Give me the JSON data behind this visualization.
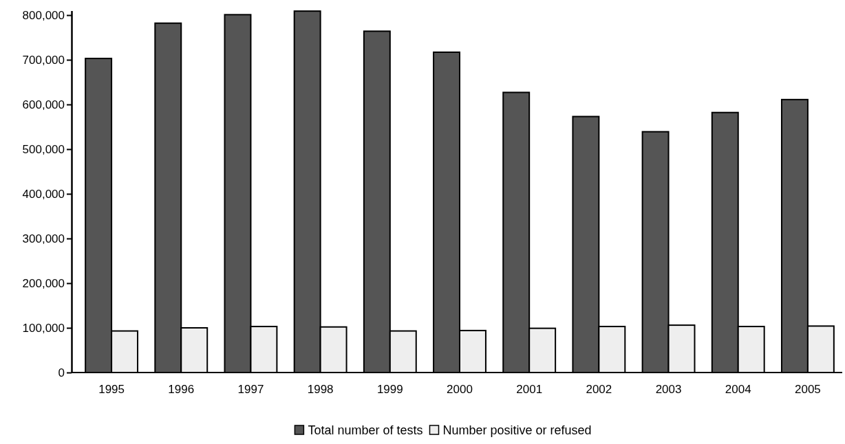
{
  "chart_data": {
    "type": "bar",
    "categories": [
      "1995",
      "1996",
      "1997",
      "1998",
      "1999",
      "2000",
      "2001",
      "2002",
      "2003",
      "2004",
      "2005"
    ],
    "series": [
      {
        "name": "Total number of tests",
        "color": "#555555",
        "values": [
          703000,
          782000,
          801000,
          809000,
          764000,
          717000,
          627000,
          573000,
          539000,
          582000,
          611000
        ]
      },
      {
        "name": "Number positive or refused",
        "color": "#eeeeee",
        "values": [
          93000,
          100000,
          103000,
          102000,
          93000,
          94000,
          99000,
          103000,
          106000,
          103000,
          104000
        ]
      }
    ],
    "ylim": [
      0,
      810000
    ],
    "yticks": [
      {
        "value": 0,
        "label": "0"
      },
      {
        "value": 100000,
        "label": "100,000"
      },
      {
        "value": 200000,
        "label": "200,000"
      },
      {
        "value": 300000,
        "label": "300,000"
      },
      {
        "value": 400000,
        "label": "400,000"
      },
      {
        "value": 500000,
        "label": "500,000"
      },
      {
        "value": 600000,
        "label": "600,000"
      },
      {
        "value": 700000,
        "label": "700,000"
      },
      {
        "value": 800000,
        "label": "800,000"
      }
    ],
    "grid": false,
    "legend": "bottom"
  }
}
